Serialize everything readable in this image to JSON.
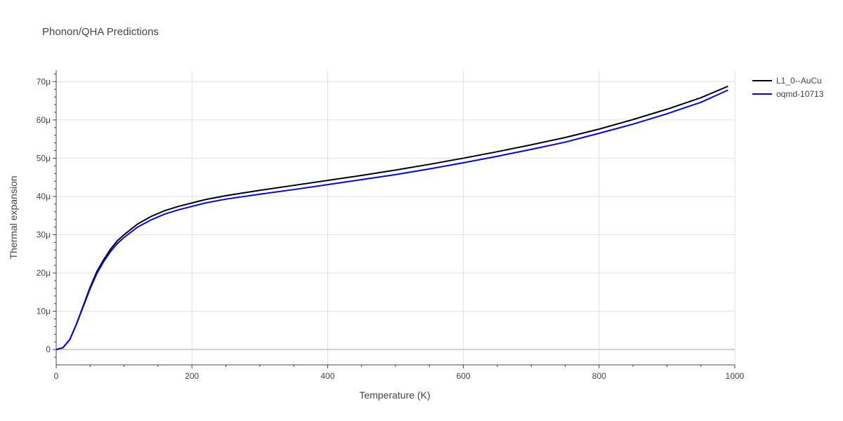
{
  "chart_data": {
    "type": "line",
    "title": "Phonon/QHA Predictions",
    "xlabel": "Temperature (K)",
    "ylabel": "Thermal expansion",
    "xlim": [
      0,
      1000
    ],
    "ylim": [
      -4,
      73
    ],
    "y_unit_suffix": "μ",
    "x_ticks": [
      0,
      200,
      400,
      600,
      800,
      1000
    ],
    "y_ticks": [
      0,
      10,
      20,
      30,
      40,
      50,
      60,
      70
    ],
    "y_tick_labels": [
      "0",
      "10μ",
      "20μ",
      "30μ",
      "40μ",
      "50μ",
      "60μ",
      "70μ"
    ],
    "grid": true,
    "legend_position": "top-right",
    "series": [
      {
        "name": "L1_0--AuCu",
        "color": "#000000",
        "x": [
          0,
          10,
          20,
          30,
          40,
          50,
          60,
          70,
          80,
          90,
          100,
          120,
          140,
          160,
          180,
          200,
          220,
          250,
          300,
          350,
          400,
          450,
          500,
          550,
          600,
          650,
          700,
          750,
          800,
          850,
          900,
          950,
          990
        ],
        "y": [
          0,
          0.5,
          2.6,
          6.7,
          11.5,
          16.3,
          20.4,
          23.5,
          26.2,
          28.4,
          30.0,
          32.8,
          34.8,
          36.3,
          37.4,
          38.3,
          39.2,
          40.2,
          41.6,
          42.9,
          44.2,
          45.5,
          46.9,
          48.4,
          50.0,
          51.7,
          53.5,
          55.4,
          57.6,
          60.1,
          62.8,
          65.8,
          68.8
        ]
      },
      {
        "name": "oqmd-10713",
        "color": "#0000ff",
        "x": [
          0,
          10,
          20,
          30,
          40,
          50,
          60,
          70,
          80,
          90,
          100,
          120,
          140,
          160,
          180,
          200,
          220,
          250,
          300,
          350,
          400,
          450,
          500,
          550,
          600,
          650,
          700,
          750,
          800,
          850,
          900,
          950,
          990
        ],
        "y": [
          0,
          0.5,
          2.6,
          6.7,
          11.3,
          15.9,
          19.9,
          23.0,
          25.6,
          27.7,
          29.3,
          32.0,
          33.9,
          35.4,
          36.5,
          37.4,
          38.3,
          39.3,
          40.6,
          41.8,
          43.1,
          44.4,
          45.7,
          47.2,
          48.8,
          50.5,
          52.3,
          54.2,
          56.5,
          58.9,
          61.6,
          64.6,
          67.8
        ]
      }
    ]
  }
}
